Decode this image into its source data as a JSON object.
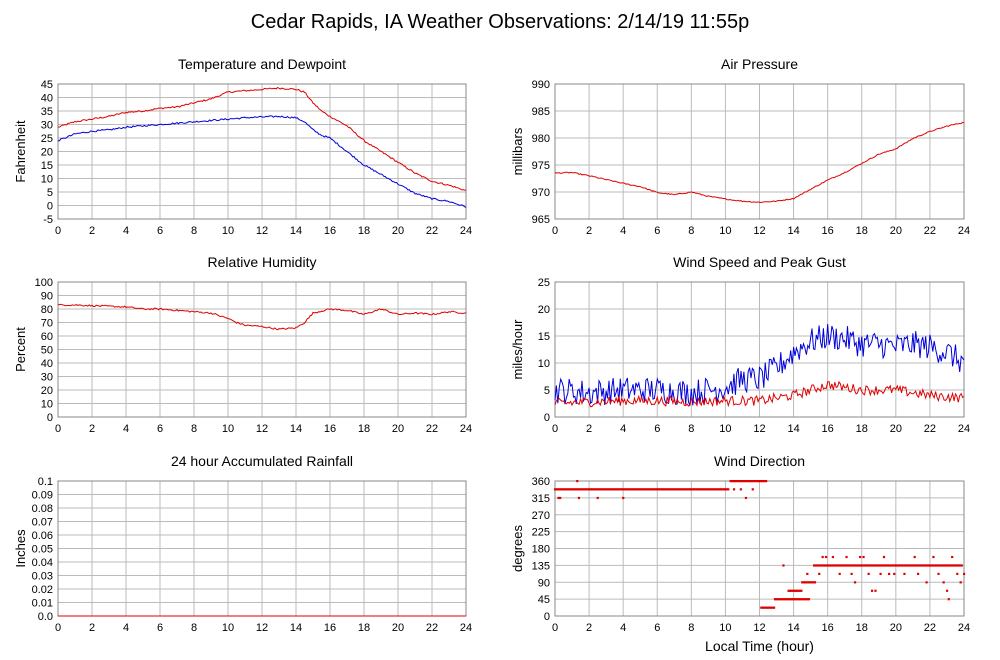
{
  "page_title": "Cedar Rapids, IA Weather Observations: 2/14/19 11:55p",
  "colors": {
    "primary": "#e00000",
    "secondary": "#0000dd",
    "grid": "#bbbbbb",
    "frame": "#888888"
  },
  "chart_data": [
    {
      "id": "temp",
      "type": "line",
      "title": "Temperature and Dewpoint",
      "ylabel": "Fahrenheit",
      "xlabel": "",
      "xlim": [
        0,
        24
      ],
      "ylim": [
        -5,
        45
      ],
      "x_ticks": [
        "0",
        "2",
        "4",
        "6",
        "8",
        "10",
        "12",
        "14",
        "16",
        "18",
        "20",
        "22",
        "24"
      ],
      "y_ticks": [
        "-5",
        "0",
        "5",
        "10",
        "15",
        "20",
        "25",
        "30",
        "35",
        "40",
        "45"
      ],
      "grid": true,
      "series": [
        {
          "color": "#e00000",
          "style": "line",
          "jitter": 0.3,
          "x": [
            0,
            1,
            2,
            3,
            4,
            5,
            6,
            7,
            8,
            9,
            10,
            11,
            12,
            13,
            14,
            14.5,
            15,
            15.5,
            16,
            17,
            18,
            19,
            20,
            21,
            22,
            23,
            24
          ],
          "y": [
            29,
            31,
            32,
            33,
            34.5,
            35,
            36,
            36.5,
            38,
            39.5,
            42,
            42.5,
            43,
            43.5,
            43,
            42,
            38,
            35,
            33,
            29.5,
            24,
            20,
            16,
            12,
            9,
            7.5,
            5.5
          ]
        },
        {
          "color": "#0000dd",
          "style": "line",
          "jitter": 0.3,
          "x": [
            0,
            1,
            2,
            3,
            4,
            5,
            6,
            7,
            8,
            9,
            10,
            11,
            12,
            13,
            14,
            14.5,
            15,
            15.5,
            16,
            17,
            18,
            19,
            20,
            21,
            22,
            23,
            24
          ],
          "y": [
            24,
            26.5,
            27.5,
            28,
            29,
            29.5,
            30,
            30.5,
            31,
            31.5,
            32,
            32.5,
            32.8,
            33,
            32.5,
            31,
            28,
            26,
            25,
            20,
            15,
            11.5,
            8,
            4.5,
            2.5,
            1.5,
            -0.5
          ]
        }
      ]
    },
    {
      "id": "pressure",
      "type": "line",
      "title": "Air Pressure",
      "ylabel": "millibars",
      "xlabel": "",
      "xlim": [
        0,
        24
      ],
      "ylim": [
        965,
        990
      ],
      "x_ticks": [
        "0",
        "2",
        "4",
        "6",
        "8",
        "10",
        "12",
        "14",
        "16",
        "18",
        "20",
        "22",
        "24"
      ],
      "y_ticks": [
        "965",
        "970",
        "975",
        "980",
        "985",
        "990"
      ],
      "grid": true,
      "series": [
        {
          "color": "#e00000",
          "style": "line",
          "jitter": 0.1,
          "x": [
            0,
            1,
            2,
            3,
            4,
            5,
            6,
            7,
            8,
            9,
            10,
            11,
            12,
            13,
            14,
            15,
            16,
            17,
            18,
            19,
            20,
            21,
            22,
            23,
            24
          ],
          "y": [
            973.5,
            973.6,
            973,
            972.3,
            971.6,
            971,
            969.9,
            969.5,
            970,
            969.2,
            968.7,
            968.3,
            968.1,
            968.3,
            968.8,
            970.5,
            972.2,
            973.6,
            975.3,
            977,
            978,
            979.9,
            981.2,
            982.2,
            982.9
          ]
        }
      ]
    },
    {
      "id": "rh",
      "type": "line",
      "title": "Relative Humidity",
      "ylabel": "Percent",
      "xlabel": "",
      "xlim": [
        0,
        24
      ],
      "ylim": [
        0,
        100
      ],
      "x_ticks": [
        "0",
        "2",
        "4",
        "6",
        "8",
        "10",
        "12",
        "14",
        "16",
        "18",
        "20",
        "22",
        "24"
      ],
      "y_ticks": [
        "0",
        "10",
        "20",
        "30",
        "40",
        "50",
        "60",
        "70",
        "80",
        "90",
        "100"
      ],
      "grid": true,
      "series": [
        {
          "color": "#e00000",
          "style": "line",
          "jitter": 0.6,
          "x": [
            0,
            1,
            2,
            3,
            4,
            5,
            6,
            7,
            8,
            9,
            10,
            10.5,
            11,
            12,
            13,
            14,
            14.5,
            15,
            16,
            17,
            18,
            19,
            20,
            21,
            22,
            23,
            24
          ],
          "y": [
            83,
            83,
            82.5,
            82,
            81.5,
            80,
            80,
            79,
            78,
            77,
            73,
            70,
            68,
            67,
            65,
            66,
            70,
            77,
            80,
            79,
            76,
            80,
            76,
            77,
            76,
            78,
            77
          ]
        }
      ]
    },
    {
      "id": "wind",
      "type": "line",
      "title": "Wind Speed and Peak Gust",
      "ylabel": "miles/hour",
      "xlabel": "",
      "xlim": [
        0,
        24
      ],
      "ylim": [
        0,
        25
      ],
      "x_ticks": [
        "0",
        "2",
        "4",
        "6",
        "8",
        "10",
        "12",
        "14",
        "16",
        "18",
        "20",
        "22",
        "24"
      ],
      "y_ticks": [
        "0",
        "5",
        "10",
        "15",
        "20",
        "25"
      ],
      "grid": true,
      "series": [
        {
          "color": "#0000dd",
          "style": "line",
          "jitter": 2.5,
          "x": [
            0,
            2,
            4,
            6,
            8,
            10,
            11,
            12,
            13,
            14,
            15,
            16,
            17,
            18,
            19,
            20,
            21,
            22,
            23,
            24
          ],
          "y": [
            5,
            4.5,
            5,
            5,
            4.5,
            5.5,
            7,
            7,
            9,
            12,
            14,
            15,
            14.5,
            13.5,
            13.5,
            13,
            13.5,
            13,
            12,
            10
          ]
        },
        {
          "color": "#e00000",
          "style": "line",
          "jitter": 0.9,
          "x": [
            0,
            2,
            4,
            6,
            8,
            10,
            12,
            13,
            14,
            15,
            16,
            18,
            20,
            22,
            24
          ],
          "y": [
            2.5,
            2.8,
            3,
            3,
            2.8,
            3,
            3,
            3.5,
            4,
            5,
            6,
            5,
            5,
            4,
            3.5
          ]
        }
      ]
    },
    {
      "id": "rain",
      "type": "line",
      "title": "24 hour Accumulated Rainfall",
      "ylabel": "Inches",
      "xlabel": "",
      "xlim": [
        0,
        24
      ],
      "ylim": [
        0,
        0.1
      ],
      "x_ticks": [
        "0",
        "2",
        "4",
        "6",
        "8",
        "10",
        "12",
        "14",
        "16",
        "18",
        "20",
        "22",
        "24"
      ],
      "y_ticks": [
        "0.0",
        "0.01",
        "0.02",
        "0.03",
        "0.04",
        "0.05",
        "0.06",
        "0.07",
        "0.08",
        "0.09",
        "0.1"
      ],
      "grid": true,
      "series": [
        {
          "color": "#e00000",
          "style": "line",
          "jitter": 0,
          "x": [
            0,
            24
          ],
          "y": [
            0,
            0
          ]
        }
      ]
    },
    {
      "id": "wdir",
      "type": "scatter",
      "title": "Wind Direction",
      "ylabel": "degrees",
      "xlabel": "Local Time (hour)",
      "xlim": [
        0,
        24
      ],
      "ylim": [
        0,
        360
      ],
      "x_ticks": [
        "0",
        "2",
        "4",
        "6",
        "8",
        "10",
        "12",
        "14",
        "16",
        "18",
        "20",
        "22",
        "24"
      ],
      "y_ticks": [
        "0",
        "45",
        "90",
        "135",
        "180",
        "225",
        "270",
        "315",
        "360"
      ],
      "grid": true,
      "series": [
        {
          "color": "#e00000",
          "style": "scatter",
          "segments": [
            {
              "x0": 0,
              "x1": 10.2,
              "y": 338,
              "step": 0.0833
            },
            {
              "x0": 10.3,
              "x1": 12.4,
              "y": 360,
              "step": 0.0833
            },
            {
              "x0": 12.1,
              "x1": 12.9,
              "y": 22.5,
              "step": 0.0833
            },
            {
              "x0": 12.9,
              "x1": 14.9,
              "y": 45,
              "step": 0.0833
            },
            {
              "x0": 13.7,
              "x1": 14.5,
              "y": 67.5,
              "step": 0.0833
            },
            {
              "x0": 14.5,
              "x1": 15.3,
              "y": 90,
              "step": 0.0833
            },
            {
              "x0": 15.2,
              "x1": 23.9,
              "y": 135,
              "step": 0.0833
            }
          ],
          "points": [
            {
              "x": 0.2,
              "y": 315
            },
            {
              "x": 0.3,
              "y": 315
            },
            {
              "x": 1.4,
              "y": 315
            },
            {
              "x": 1.3,
              "y": 360
            },
            {
              "x": 2.5,
              "y": 315
            },
            {
              "x": 4.0,
              "y": 315
            },
            {
              "x": 10.5,
              "y": 338
            },
            {
              "x": 10.9,
              "y": 338
            },
            {
              "x": 11.2,
              "y": 315
            },
            {
              "x": 11.6,
              "y": 338
            },
            {
              "x": 13.4,
              "y": 135
            },
            {
              "x": 14.8,
              "y": 112.5
            },
            {
              "x": 15.5,
              "y": 112.5
            },
            {
              "x": 15.7,
              "y": 157.5
            },
            {
              "x": 15.9,
              "y": 157.5
            },
            {
              "x": 16.3,
              "y": 157.5
            },
            {
              "x": 16.7,
              "y": 112.5
            },
            {
              "x": 17.1,
              "y": 157.5
            },
            {
              "x": 17.4,
              "y": 112.5
            },
            {
              "x": 17.6,
              "y": 90
            },
            {
              "x": 17.9,
              "y": 157.5
            },
            {
              "x": 18.1,
              "y": 157.5
            },
            {
              "x": 18.4,
              "y": 112.5
            },
            {
              "x": 18.6,
              "y": 67.5
            },
            {
              "x": 18.8,
              "y": 67.5
            },
            {
              "x": 19.1,
              "y": 112.5
            },
            {
              "x": 19.3,
              "y": 157.5
            },
            {
              "x": 19.6,
              "y": 112.5
            },
            {
              "x": 19.9,
              "y": 112.5
            },
            {
              "x": 20.5,
              "y": 112.5
            },
            {
              "x": 21.1,
              "y": 157.5
            },
            {
              "x": 21.3,
              "y": 112.5
            },
            {
              "x": 21.8,
              "y": 90
            },
            {
              "x": 22.2,
              "y": 157.5
            },
            {
              "x": 22.5,
              "y": 112.5
            },
            {
              "x": 22.8,
              "y": 90
            },
            {
              "x": 23.0,
              "y": 67.5
            },
            {
              "x": 23.1,
              "y": 45
            },
            {
              "x": 23.3,
              "y": 157.5
            },
            {
              "x": 23.6,
              "y": 112.5
            },
            {
              "x": 23.8,
              "y": 90
            },
            {
              "x": 24.0,
              "y": 112.5
            }
          ]
        }
      ]
    }
  ]
}
